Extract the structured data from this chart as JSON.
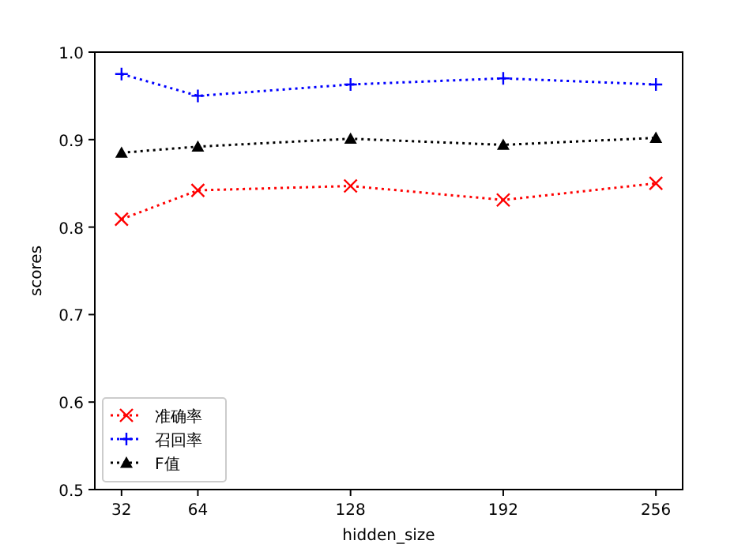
{
  "chart_data": {
    "type": "line",
    "xlabel": "hidden_size",
    "ylabel": "scores",
    "x": [
      32,
      64,
      128,
      192,
      256
    ],
    "xlim": [
      20.8,
      267.2
    ],
    "xticks": [
      32,
      64,
      128,
      192,
      256
    ],
    "ylim": [
      0.5,
      1.0
    ],
    "yticks": [
      0.5,
      0.6,
      0.7,
      0.8,
      0.9,
      {
        "value": 1.0,
        "label": "1.0"
      }
    ],
    "line_style": "dotted",
    "legend": "bottom left",
    "grid": false,
    "series": [
      {
        "name": "准确率",
        "color": "#ff0000",
        "marker": "cross",
        "values": [
          0.809,
          0.842,
          0.847,
          0.831,
          0.85
        ]
      },
      {
        "name": "召回率",
        "color": "#0000ff",
        "marker": "plus",
        "values": [
          0.975,
          0.95,
          0.963,
          0.97,
          0.963
        ]
      },
      {
        "name": "F值",
        "color": "#000000",
        "marker": "triangle",
        "values": [
          0.885,
          0.892,
          0.901,
          0.894,
          0.902
        ]
      }
    ]
  }
}
